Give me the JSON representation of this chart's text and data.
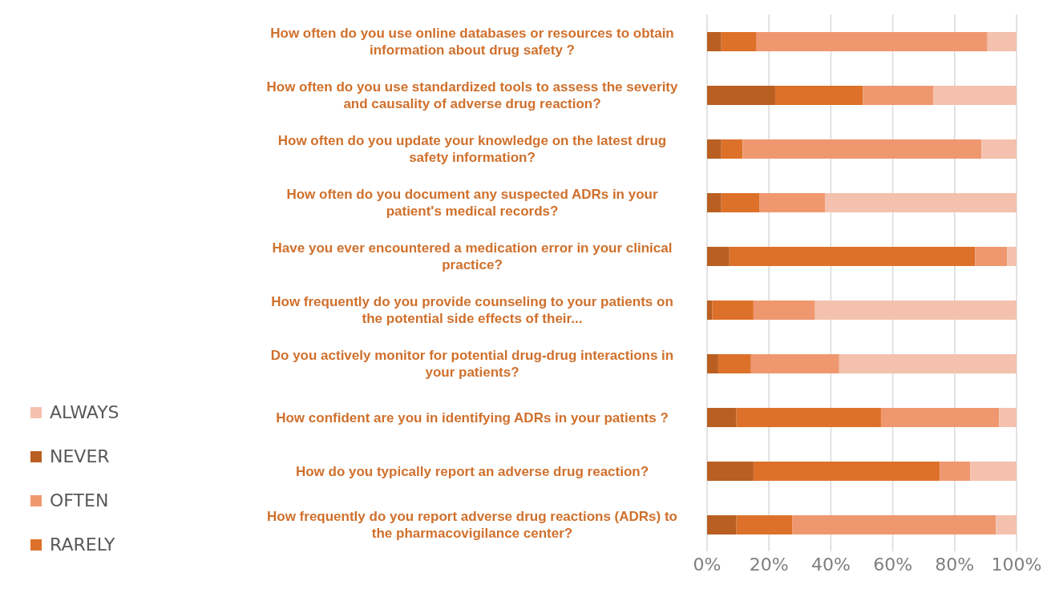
{
  "chart_data": {
    "type": "bar",
    "orientation": "horizontal",
    "stacked": true,
    "categories": [
      "How often do you use online databases or resources to obtain information about drug safety ?",
      "How often do you use standardized tools to assess the severity and causality of adverse drug reaction?",
      "How often do you update your knowledge on the latest drug safety information?",
      "How often do you document any suspected ADRs in your patient's medical records?",
      "Have you ever encountered a medication error in your clinical practice?",
      "How frequently do you provide counseling to your patients on the potential side effects of their...",
      "Do you actively monitor for potential drug-drug interactions in your patients?",
      "How confident are you in identifying ADRs in your patients ?",
      "How do you typically report an adverse drug reaction?",
      "How frequently do you report adverse drug reactions (ADRs) to the pharmacovigilance center?"
    ],
    "series": [
      {
        "name": "NEVER",
        "color": "#b95f22",
        "values": [
          4.6,
          22.0,
          4.6,
          4.6,
          7.2,
          1.7,
          3.6,
          9.5,
          15.0,
          9.5
        ]
      },
      {
        "name": "RARELY",
        "color": "#dd712a",
        "values": [
          11.4,
          28.4,
          6.9,
          12.4,
          79.4,
          13.3,
          10.6,
          46.7,
          60.2,
          18.0
        ]
      },
      {
        "name": "OFTEN",
        "color": "#ef9870",
        "values": [
          74.6,
          22.8,
          77.2,
          21.1,
          10.4,
          19.9,
          28.5,
          38.2,
          9.8,
          65.8
        ]
      },
      {
        "name": "ALWAYS",
        "color": "#f4c1ae",
        "values": [
          9.4,
          26.8,
          11.3,
          61.9,
          3.0,
          65.1,
          57.3,
          5.6,
          15.0,
          6.7
        ]
      }
    ],
    "xlim": [
      0,
      100
    ],
    "xticks": [
      {
        "value": 0,
        "label": "0%"
      },
      {
        "value": 20,
        "label": "20%"
      },
      {
        "value": 40,
        "label": "40%"
      },
      {
        "value": 60,
        "label": "60%"
      },
      {
        "value": 80,
        "label": "80%"
      },
      {
        "value": 100,
        "label": "100%"
      }
    ],
    "grid": "x",
    "legend": "bottom left"
  }
}
